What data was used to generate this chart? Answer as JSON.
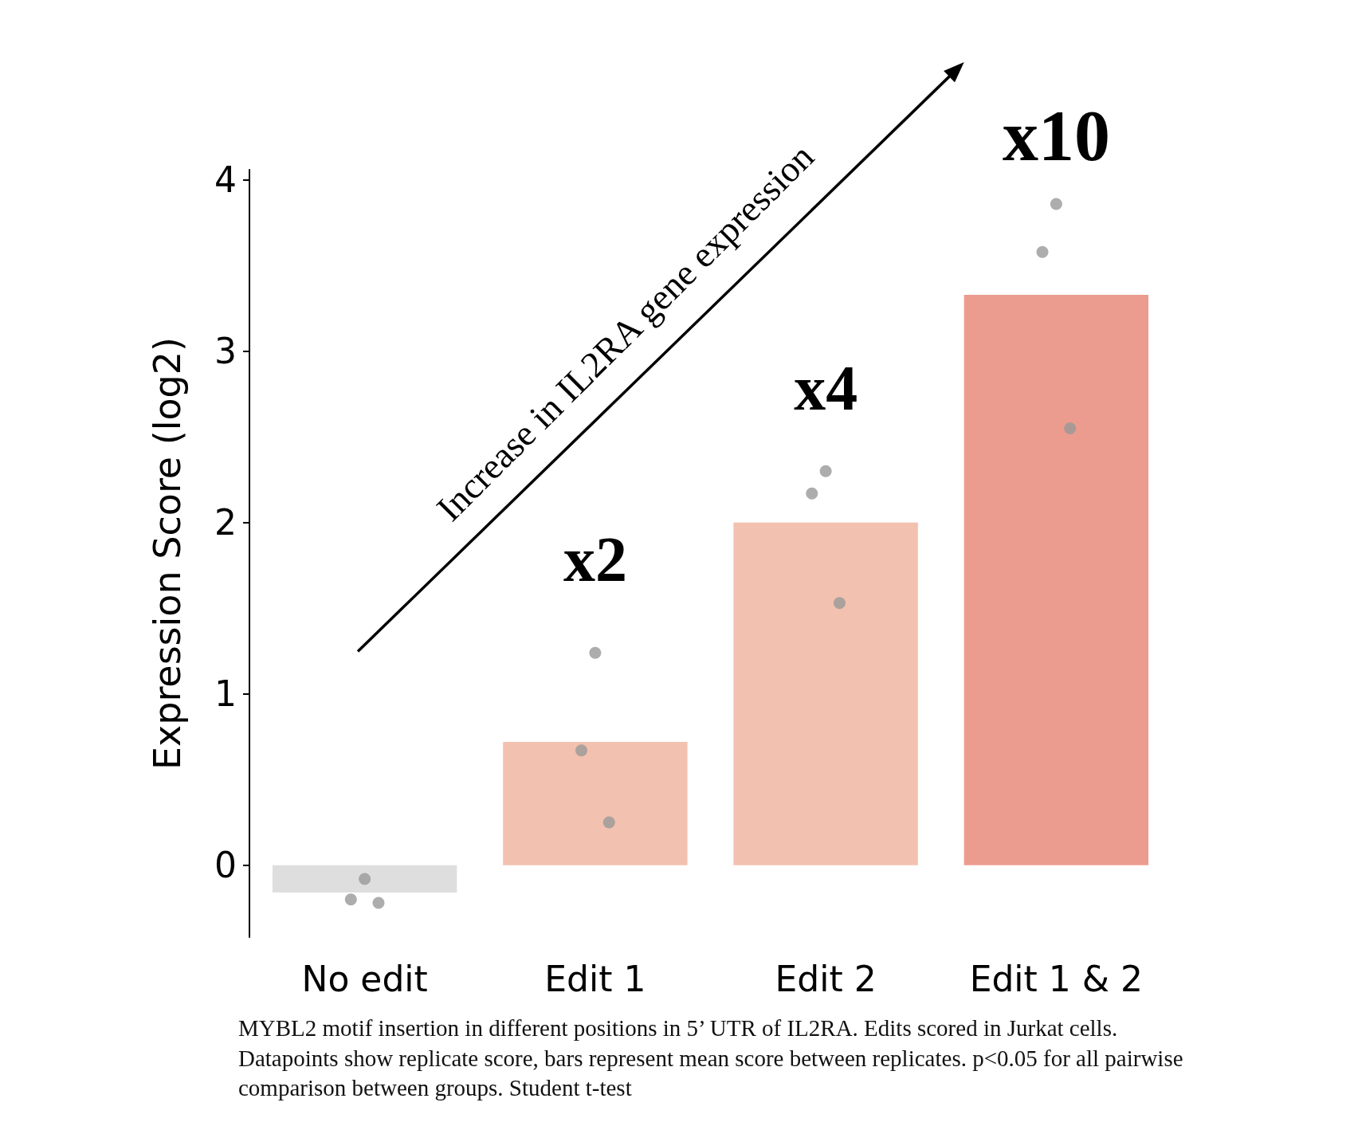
{
  "chart_data": {
    "type": "bar",
    "ylabel": "Expression Score (log2)",
    "categories": [
      "No edit",
      "Edit 1",
      "Edit 2",
      "Edit 1 & 2"
    ],
    "series": [
      {
        "values": [
          -0.16,
          0.72,
          2.0,
          3.33
        ],
        "colors": [
          "#dedede",
          "#f3c1af",
          "#f3c1af",
          "#ec9c8e"
        ]
      },
      {
        "type": "scatter",
        "marker": "circle",
        "color": "#999999",
        "x": [
          "No edit",
          "No edit",
          "No edit",
          "Edit 1",
          "Edit 1",
          "Edit 1",
          "Edit 2",
          "Edit 2",
          "Edit 2",
          "Edit 1 & 2",
          "Edit 1 & 2",
          "Edit 1 & 2"
        ],
        "values": [
          -0.08,
          -0.2,
          -0.22,
          1.24,
          0.67,
          0.25,
          2.3,
          2.17,
          1.53,
          3.86,
          3.58,
          2.55
        ]
      }
    ],
    "ylim": [
      -0.42,
      4.06
    ],
    "yticks": [
      0,
      1,
      2,
      3,
      4
    ],
    "grid": false,
    "annotations": [
      "x2",
      "x4",
      "x10",
      "Increase in IL2RA gene expression",
      "MYBL2 motif insertion in different positions in 5’ UTR of IL2RA. Edits scored in Jurkat cells. Datapoints show replicate score, bars represent mean score between replicates. p<0.05 for all pairwise comparison between groups. Student t-test"
    ]
  }
}
